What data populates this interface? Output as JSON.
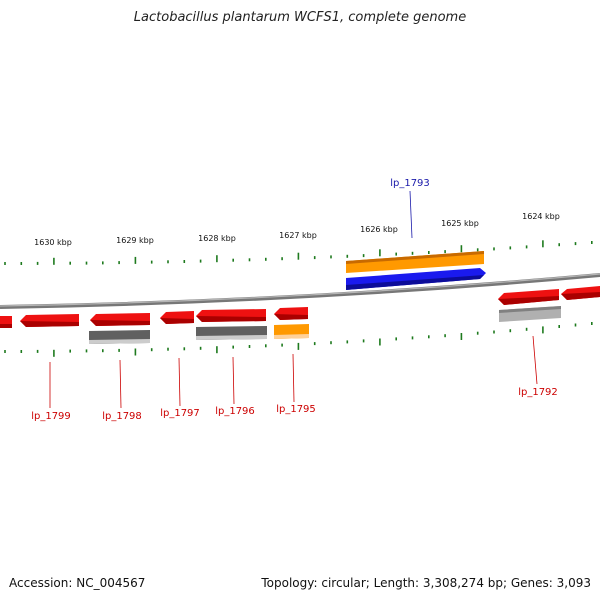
{
  "header": {
    "title": "Lactobacillus plantarum WCFS1, complete genome"
  },
  "footer": {
    "accession": "Accession: NC_004567",
    "stats": "Topology: circular; Length: 3,308,274 bp; Genes: 3,093"
  },
  "colors": {
    "tick": "#1e7a1e",
    "backbone": "#8a8a8a",
    "cds": "#ee1111",
    "rna": "#ff9900",
    "selected": "#1a1aee",
    "gene_dark": "#606060",
    "gene_light": "#b0b0b0",
    "label_red": "#cc0000",
    "label_blue": "#1a1aaa",
    "text": "#111111"
  },
  "scale_labels": [
    "1630 kbp",
    "1629 kbp",
    "1628 kbp",
    "1627 kbp",
    "1626 kbp",
    "1625 kbp",
    "1624 kbp"
  ],
  "features": [
    {
      "label": "lp_1799",
      "selected": false
    },
    {
      "label": "lp_1798",
      "selected": false
    },
    {
      "label": "lp_1797",
      "selected": false
    },
    {
      "label": "lp_1796",
      "selected": false
    },
    {
      "label": "lp_1795",
      "selected": false
    },
    {
      "label": "lp_1793",
      "selected": true
    },
    {
      "label": "lp_1792",
      "selected": false
    }
  ]
}
